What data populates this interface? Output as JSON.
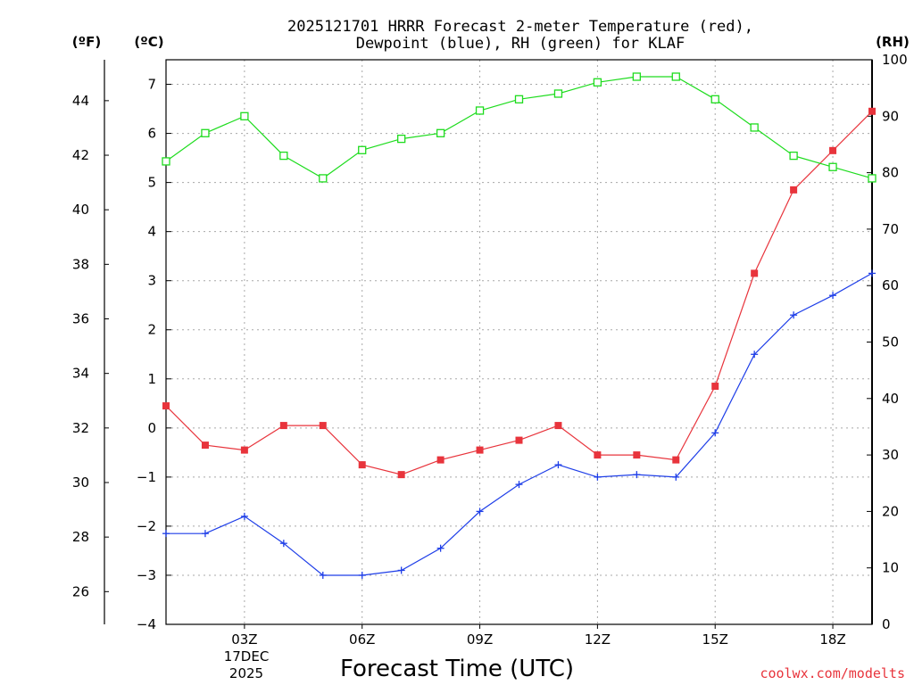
{
  "chart_data": {
    "type": "line",
    "title_line1": "2025121701 HRRR Forecast 2-meter Temperature (red),",
    "title_line2": "Dewpoint (blue), RH (green) for KLAF",
    "xlabel": "Forecast Time (UTC)",
    "credit": "coolwx.com/modelts",
    "date_label": [
      "17DEC",
      "2025"
    ],
    "x": [
      1,
      2,
      3,
      4,
      5,
      6,
      7,
      8,
      9,
      10,
      11,
      12,
      13,
      14,
      15,
      16,
      17,
      18,
      19
    ],
    "x_ticks": [
      {
        "hour": 3,
        "label": "03Z"
      },
      {
        "hour": 6,
        "label": "06Z"
      },
      {
        "hour": 9,
        "label": "09Z"
      },
      {
        "hour": 12,
        "label": "12Z"
      },
      {
        "hour": 15,
        "label": "15Z"
      },
      {
        "hour": 18,
        "label": "18Z"
      }
    ],
    "xlim": [
      1,
      19
    ],
    "axes": {
      "celsius": {
        "unit": "(ºC)",
        "range": [
          -4,
          7.5
        ],
        "ticks": [
          -4,
          -3,
          -2,
          -1,
          0,
          1,
          2,
          3,
          4,
          5,
          6,
          7
        ]
      },
      "fahrenheit": {
        "unit": "(ºF)",
        "ticks": [
          26,
          28,
          30,
          32,
          34,
          36,
          38,
          40,
          42,
          44
        ]
      },
      "rh": {
        "unit": "(RH)",
        "range": [
          0,
          100
        ],
        "ticks": [
          0,
          10,
          20,
          30,
          40,
          50,
          60,
          70,
          80,
          90,
          100
        ]
      }
    },
    "series": [
      {
        "name": "Temperature",
        "axis": "celsius",
        "color": "#e8343c",
        "marker": "filled-square",
        "values": [
          0.45,
          -0.35,
          -0.45,
          0.05,
          0.05,
          -0.75,
          -0.95,
          -0.65,
          -0.45,
          -0.25,
          0.05,
          -0.55,
          -0.55,
          -0.65,
          0.85,
          3.15,
          4.85,
          5.65,
          6.45
        ]
      },
      {
        "name": "Dewpoint",
        "axis": "celsius",
        "color": "#1e3ee8",
        "marker": "plus",
        "values": [
          -2.15,
          -2.15,
          -1.8,
          -2.35,
          -3.0,
          -3.0,
          -2.9,
          -2.45,
          -1.7,
          -1.15,
          -0.75,
          -1.0,
          -0.95,
          -1.0,
          -0.1,
          1.5,
          2.3,
          2.7,
          3.15
        ]
      },
      {
        "name": "RH",
        "axis": "rh",
        "color": "#1edc1e",
        "marker": "open-square",
        "values": [
          82,
          87,
          90,
          83,
          79,
          84,
          86,
          87,
          91,
          93,
          94,
          96,
          97,
          97,
          93,
          88,
          83,
          81,
          79
        ]
      }
    ]
  }
}
